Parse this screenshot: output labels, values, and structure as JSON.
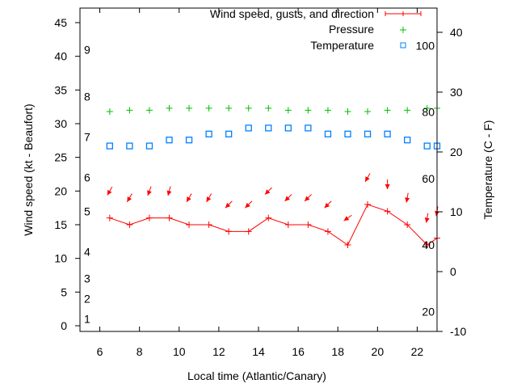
{
  "chart_data": {
    "type": "line",
    "xlabel": "Local time (Atlantic/Canary)",
    "ylabel": "Wind speed (kt - Beaufort)",
    "y2label": "Temperature (C - F)",
    "xlim": [
      5,
      23
    ],
    "ylim": [
      -0.84,
      47.16
    ],
    "y2lim": [
      -10,
      44.05
    ],
    "grid": false,
    "legend_position": "top-right",
    "x_ticks": [
      6,
      8,
      10,
      12,
      14,
      16,
      18,
      20,
      22
    ],
    "y_ticks": [
      0,
      5,
      10,
      15,
      20,
      25,
      30,
      35,
      40,
      45
    ],
    "y2_ticks": [
      -10,
      0,
      10,
      20,
      30,
      40
    ],
    "beaufort_labels": [
      {
        "label": "1",
        "kt": 1
      },
      {
        "label": "2",
        "kt": 4
      },
      {
        "label": "3",
        "kt": 7
      },
      {
        "label": "4",
        "kt": 11
      },
      {
        "label": "5",
        "kt": 17
      },
      {
        "label": "6",
        "kt": 22
      },
      {
        "label": "7",
        "kt": 28
      },
      {
        "label": "8",
        "kt": 34
      },
      {
        "label": "9",
        "kt": 41
      }
    ],
    "fahrenheit_labels": [
      20,
      40,
      60,
      80,
      100
    ],
    "x": [
      6.5,
      7.5,
      8.5,
      9.5,
      10.5,
      11.5,
      12.5,
      13.5,
      14.5,
      15.5,
      16.5,
      17.5,
      18.5,
      19.5,
      20.5,
      21.5,
      22.5,
      23
    ],
    "series": [
      {
        "name": "Wind speed, gusts, and direction",
        "color": "#ff0000",
        "axis": "y",
        "values": [
          16,
          15,
          16,
          16,
          15,
          15,
          14,
          14,
          16,
          15,
          15,
          14,
          12,
          18,
          17,
          15,
          12,
          13
        ],
        "gusts": [
          20,
          19,
          20,
          20,
          19,
          19,
          18,
          18,
          20,
          19,
          19,
          18,
          16,
          22,
          21,
          19,
          16,
          17
        ],
        "direction_deg": [
          30,
          30,
          20,
          15,
          30,
          30,
          45,
          45,
          45,
          45,
          45,
          45,
          55,
          30,
          0,
          10,
          10,
          10
        ]
      },
      {
        "name": "Pressure",
        "color": "#00c000",
        "axis": "y",
        "values": [
          31.8,
          32.0,
          32.0,
          32.3,
          32.3,
          32.3,
          32.3,
          32.3,
          32.3,
          32.0,
          32.0,
          32.0,
          31.8,
          31.8,
          32.0,
          32.0,
          32.3,
          32.3
        ]
      },
      {
        "name": "Temperature",
        "color": "#0080ff",
        "axis": "y2",
        "values": [
          21,
          21,
          21,
          22,
          22,
          23,
          23,
          24,
          24,
          24,
          24,
          23,
          23,
          23,
          23,
          22,
          21,
          21
        ]
      }
    ]
  }
}
